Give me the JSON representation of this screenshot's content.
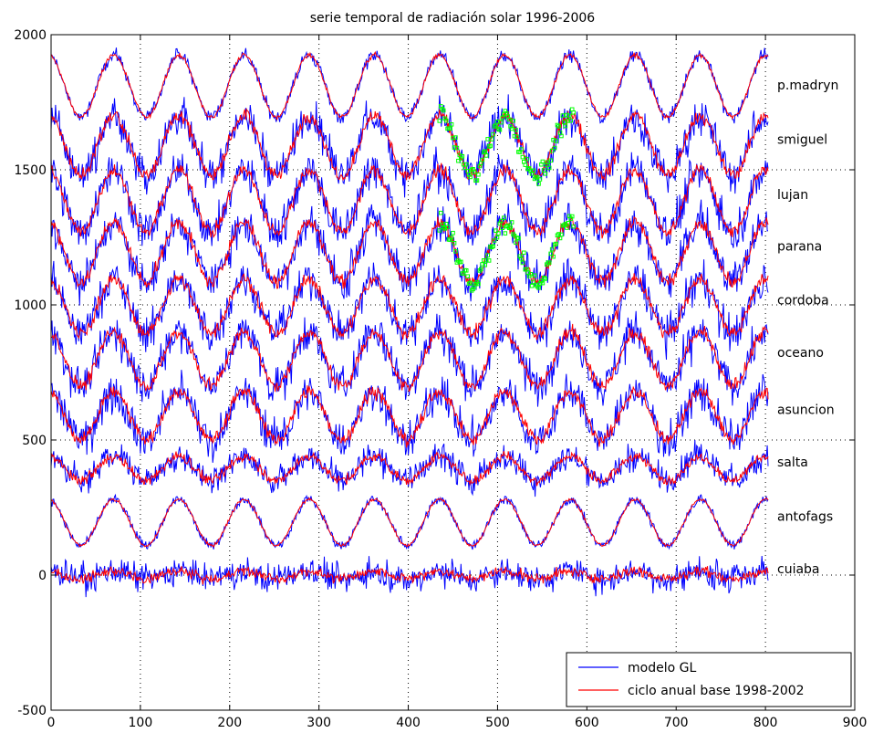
{
  "chart_data": {
    "type": "line",
    "title": "serie temporal de radiación solar 1996-2006",
    "xlabel": "",
    "ylabel": "",
    "xlim": [
      0,
      900
    ],
    "ylim": [
      -500,
      2000
    ],
    "xticks": [
      0,
      100,
      200,
      300,
      400,
      500,
      600,
      700,
      800,
      900
    ],
    "yticks": [
      -500,
      0,
      500,
      1000,
      1500,
      2000
    ],
    "grid": "dotted",
    "legend_position": "bottom-right",
    "legend": [
      {
        "label": "modelo GL",
        "color": "#0000ff"
      },
      {
        "label": "ciclo anual base 1998-2002",
        "color": "#ff0000"
      }
    ],
    "colors": {
      "model": "#0000ff",
      "cycle": "#ff0000",
      "observed": "#00ff00"
    },
    "period": 73,
    "x_range": [
      0,
      803
    ],
    "stations": [
      {
        "name": "p.madryn",
        "baseline": 1810,
        "amplitude": 115,
        "noise": 20,
        "phase": 70
      },
      {
        "name": "smiguel",
        "baseline": 1590,
        "amplitude": 110,
        "noise": 60,
        "phase": 70
      },
      {
        "name": "lujan",
        "baseline": 1385,
        "amplitude": 115,
        "noise": 60,
        "phase": 70
      },
      {
        "name": "parana",
        "baseline": 1195,
        "amplitude": 110,
        "noise": 60,
        "phase": 70
      },
      {
        "name": "cordoba",
        "baseline": 995,
        "amplitude": 100,
        "noise": 60,
        "phase": 70
      },
      {
        "name": "oceano",
        "baseline": 800,
        "amplitude": 100,
        "noise": 60,
        "phase": 70
      },
      {
        "name": "asuncion",
        "baseline": 590,
        "amplitude": 90,
        "noise": 60,
        "phase": 70
      },
      {
        "name": "salta",
        "baseline": 395,
        "amplitude": 45,
        "noise": 45,
        "phase": 70
      },
      {
        "name": "antofags",
        "baseline": 195,
        "amplitude": 85,
        "noise": 15,
        "phase": 70
      },
      {
        "name": "cuiaba",
        "baseline": 0,
        "amplitude": 15,
        "noise": 45,
        "phase": 70
      }
    ],
    "station_label_texts": [
      "p.madryn",
      "smiguel",
      "lujan",
      "parana",
      "cordoba",
      "oceano",
      "asuncion",
      "salta",
      "antofags",
      "cuiaba"
    ],
    "observed_segments": [
      {
        "station": "smiguel",
        "x_start": 435,
        "x_end": 585
      },
      {
        "station": "parana",
        "x_start": 435,
        "x_end": 585
      }
    ]
  }
}
